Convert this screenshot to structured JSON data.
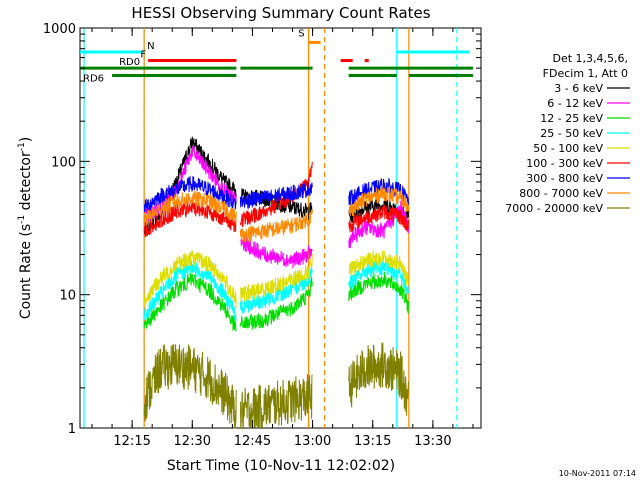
{
  "chart_data": {
    "type": "line",
    "title": "HESSI Observing Summary Count Rates",
    "xlabel": "Start Time (10-Nov-11 12:02:02)",
    "ylabel": "Count Rate (s",
    "ylabel_sup": "-1",
    "ylabel_rest": " detector",
    "ylabel_sup2": "-1",
    "ylabel_end": ")",
    "y_scale": "log",
    "ylim": [
      1,
      1000
    ],
    "xlim": [
      "12:02",
      "13:42"
    ],
    "x_ticks": [
      "12:15",
      "12:30",
      "12:45",
      "13:00",
      "13:15",
      "13:30"
    ],
    "y_ticks": [
      "1",
      "10",
      "100",
      "1000"
    ],
    "timestamp": "10-Nov-2011 07:14",
    "legend_header": [
      "Det 1,3,4,5,6,",
      "FDecim 1, Att 0"
    ],
    "series": [
      {
        "name": "3 - 6 keV",
        "color": "#000000",
        "points": [
          [
            "12:18",
            30
          ],
          [
            "12:22",
            40
          ],
          [
            "12:26",
            70
          ],
          [
            "12:30",
            140
          ],
          [
            "12:34",
            100
          ],
          [
            "12:38",
            70
          ],
          [
            "12:41",
            60
          ],
          [
            "12:42",
            55
          ],
          [
            "12:48",
            52
          ],
          [
            "12:55",
            45
          ],
          [
            "12:59",
            42
          ],
          [
            "13:00",
            45
          ],
          [
            "13:09",
            38
          ],
          [
            "13:13",
            45
          ],
          [
            "13:18",
            48
          ],
          [
            "13:22",
            42
          ],
          [
            "13:24",
            38
          ]
        ]
      },
      {
        "name": "6 - 12 keV",
        "color": "#ff00ff",
        "points": [
          [
            "12:18",
            38
          ],
          [
            "12:22",
            45
          ],
          [
            "12:26",
            60
          ],
          [
            "12:30",
            120
          ],
          [
            "12:34",
            85
          ],
          [
            "12:38",
            60
          ],
          [
            "12:41",
            50
          ],
          [
            "12:42",
            25
          ],
          [
            "12:48",
            20
          ],
          [
            "12:55",
            18
          ],
          [
            "12:59",
            20
          ],
          [
            "13:00",
            21
          ],
          [
            "13:09",
            25
          ],
          [
            "13:13",
            32
          ],
          [
            "13:18",
            30
          ],
          [
            "13:22",
            45
          ],
          [
            "13:24",
            32
          ]
        ]
      },
      {
        "name": "12 - 25 keV",
        "color": "#00dd00",
        "points": [
          [
            "12:18",
            6
          ],
          [
            "12:22",
            8
          ],
          [
            "12:26",
            11
          ],
          [
            "12:30",
            13
          ],
          [
            "12:34",
            11
          ],
          [
            "12:38",
            8
          ],
          [
            "12:41",
            5.5
          ],
          [
            "12:42",
            6
          ],
          [
            "12:48",
            6.5
          ],
          [
            "12:55",
            8
          ],
          [
            "12:59",
            10
          ],
          [
            "13:00",
            13
          ],
          [
            "13:09",
            10
          ],
          [
            "13:13",
            12
          ],
          [
            "13:18",
            13
          ],
          [
            "13:22",
            11
          ],
          [
            "13:24",
            8
          ]
        ]
      },
      {
        "name": "25 - 50 keV",
        "color": "#00ffff",
        "points": [
          [
            "12:18",
            7
          ],
          [
            "12:22",
            10
          ],
          [
            "12:26",
            14
          ],
          [
            "12:30",
            16
          ],
          [
            "12:34",
            14
          ],
          [
            "12:38",
            10
          ],
          [
            "12:41",
            7
          ],
          [
            "12:42",
            8
          ],
          [
            "12:48",
            9
          ],
          [
            "12:55",
            11
          ],
          [
            "12:59",
            13
          ],
          [
            "13:00",
            16
          ],
          [
            "13:09",
            12
          ],
          [
            "13:13",
            15
          ],
          [
            "13:18",
            16
          ],
          [
            "13:22",
            14
          ],
          [
            "13:24",
            10
          ]
        ]
      },
      {
        "name": "50 - 100 keV",
        "color": "#dddd00",
        "points": [
          [
            "12:18",
            9
          ],
          [
            "12:22",
            13
          ],
          [
            "12:26",
            17
          ],
          [
            "12:30",
            19
          ],
          [
            "12:34",
            17
          ],
          [
            "12:38",
            13
          ],
          [
            "12:41",
            9
          ],
          [
            "12:42",
            10
          ],
          [
            "12:48",
            11
          ],
          [
            "12:55",
            13
          ],
          [
            "12:59",
            15
          ],
          [
            "13:00",
            18
          ],
          [
            "13:09",
            15
          ],
          [
            "13:13",
            18
          ],
          [
            "13:18",
            19
          ],
          [
            "13:22",
            17
          ],
          [
            "13:24",
            12
          ]
        ]
      },
      {
        "name": "100 - 300 keV",
        "color": "#ff0000",
        "points": [
          [
            "12:18",
            30
          ],
          [
            "12:22",
            36
          ],
          [
            "12:26",
            42
          ],
          [
            "12:30",
            45
          ],
          [
            "12:34",
            42
          ],
          [
            "12:38",
            37
          ],
          [
            "12:41",
            33
          ],
          [
            "12:42",
            36
          ],
          [
            "12:48",
            42
          ],
          [
            "12:55",
            55
          ],
          [
            "12:59",
            70
          ],
          [
            "13:00",
            100
          ],
          [
            "13:09",
            33
          ],
          [
            "13:13",
            38
          ],
          [
            "13:18",
            42
          ],
          [
            "13:22",
            38
          ],
          [
            "13:24",
            32
          ]
        ]
      },
      {
        "name": "300 - 800 keV",
        "color": "#0000ff",
        "points": [
          [
            "12:18",
            45
          ],
          [
            "12:22",
            55
          ],
          [
            "12:26",
            62
          ],
          [
            "12:30",
            68
          ],
          [
            "12:34",
            62
          ],
          [
            "12:38",
            54
          ],
          [
            "12:41",
            48
          ],
          [
            "12:42",
            50
          ],
          [
            "12:48",
            53
          ],
          [
            "12:55",
            58
          ],
          [
            "12:59",
            62
          ],
          [
            "13:00",
            65
          ],
          [
            "13:09",
            52
          ],
          [
            "13:13",
            60
          ],
          [
            "13:18",
            66
          ],
          [
            "13:22",
            60
          ],
          [
            "13:24",
            50
          ]
        ]
      },
      {
        "name": "800 - 7000 keV",
        "color": "#ff8800",
        "points": [
          [
            "12:18",
            36
          ],
          [
            "12:22",
            44
          ],
          [
            "12:26",
            50
          ],
          [
            "12:30",
            53
          ],
          [
            "12:34",
            50
          ],
          [
            "12:38",
            44
          ],
          [
            "12:41",
            38
          ],
          [
            "12:42",
            28
          ],
          [
            "12:48",
            30
          ],
          [
            "12:55",
            33
          ],
          [
            "12:59",
            37
          ],
          [
            "13:00",
            40
          ],
          [
            "13:09",
            42
          ],
          [
            "13:13",
            52
          ],
          [
            "13:18",
            58
          ],
          [
            "13:22",
            53
          ],
          [
            "13:24",
            44
          ]
        ]
      },
      {
        "name": "7000 - 20000 keV",
        "color": "#808000",
        "points": [
          [
            "12:18",
            1.6
          ],
          [
            "12:22",
            2.8
          ],
          [
            "12:26",
            3.0
          ],
          [
            "12:30",
            2.8
          ],
          [
            "12:34",
            2.4
          ],
          [
            "12:38",
            1.8
          ],
          [
            "12:41",
            1.3
          ],
          [
            "13:09",
            2.0
          ],
          [
            "13:13",
            2.8
          ],
          [
            "13:18",
            3.0
          ],
          [
            "13:22",
            2.5
          ],
          [
            "13:24",
            1.6
          ]
        ]
      }
    ],
    "gaps": [
      [
        "12:41",
        "12:42"
      ],
      [
        "13:00",
        "13:09"
      ]
    ],
    "vertical_markers": [
      {
        "t": "12:03",
        "color": "#00ffff",
        "style": "solid"
      },
      {
        "t": "12:18",
        "color": "#00ffff",
        "style": "dashed"
      },
      {
        "t": "12:18",
        "color": "#ff8800",
        "style": "solid"
      },
      {
        "t": "12:59",
        "color": "#ff8800",
        "style": "solid"
      },
      {
        "t": "13:03",
        "color": "#ff8800",
        "style": "dashed"
      },
      {
        "t": "13:21",
        "color": "#00ffff",
        "style": "solid"
      },
      {
        "t": "13:24",
        "color": "#ff8800",
        "style": "solid"
      },
      {
        "t": "13:36",
        "color": "#00ffff",
        "style": "dashed"
      }
    ],
    "flag_bars": [
      {
        "label": "N",
        "color": "#00ffff",
        "y": 660,
        "label_at": "12:18",
        "segments": [
          [
            "12:02",
            "12:18"
          ],
          [
            "13:21",
            "13:39"
          ]
        ]
      },
      {
        "label": "S",
        "color": "#ff8800",
        "y": 780,
        "label_at": "12:59",
        "segments": [
          [
            "12:59",
            "13:02"
          ]
        ]
      },
      {
        "label": "F",
        "color": "#ff0000",
        "y": 570,
        "label_at": "12:19",
        "segments": [
          [
            "12:19",
            "12:41"
          ],
          [
            "13:07",
            "13:10"
          ],
          [
            "13:13",
            "13:14"
          ]
        ]
      },
      {
        "label": "RD0",
        "color": "#008000",
        "y": 500,
        "label_at": "12:11",
        "segments": [
          [
            "12:02",
            "12:41"
          ],
          [
            "12:42",
            "13:00"
          ],
          [
            "13:09",
            "13:40"
          ]
        ]
      },
      {
        "label": "RD6",
        "color": "#008000",
        "y": 440,
        "label_at": "12:02",
        "segments": [
          [
            "12:10",
            "12:41"
          ],
          [
            "13:09",
            "13:21"
          ],
          [
            "13:24",
            "13:40"
          ]
        ]
      }
    ]
  }
}
